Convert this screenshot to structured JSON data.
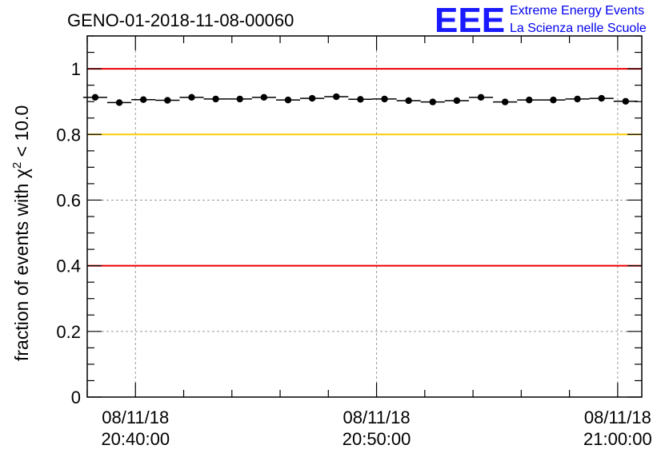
{
  "title": "GENO-01-2018-11-08-00060",
  "logo": {
    "mark": "EEE",
    "line1": "Extreme Energy Events",
    "line2": "La Scienza nelle Scuole",
    "color": "#1a1aff"
  },
  "chart_data": {
    "type": "scatter",
    "title": "GENO-01-2018-11-08-00060",
    "xlabel": "",
    "ylabel_main": "fraction of events with ",
    "ylabel_symbol": "χ",
    "ylabel_sup": "2",
    "ylabel_tail": " < 10.0",
    "ylim": [
      0,
      1.1
    ],
    "xlim_minutes": [
      -2.0,
      21.0
    ],
    "yticks": [
      0,
      0.2,
      0.4,
      0.6,
      0.8,
      1
    ],
    "ytick_labels": [
      "0",
      "0.2",
      "0.4",
      "0.6",
      "0.8",
      "1"
    ],
    "xticks": [
      {
        "minute": 0,
        "date": "08/11/18",
        "time": "20:40:00"
      },
      {
        "minute": 10,
        "date": "08/11/18",
        "time": "20:50:00"
      },
      {
        "minute": 20,
        "date": "08/11/18",
        "time": "21:00:00"
      }
    ],
    "reference_lines": [
      {
        "y": 1.0,
        "color": "#ee0000",
        "label": "upper red line"
      },
      {
        "y": 0.8,
        "color": "#ffcc00",
        "label": "yellow line"
      },
      {
        "y": 0.4,
        "color": "#ee0000",
        "label": "lower red line"
      }
    ],
    "bin_width_minutes": 1.0,
    "points": [
      {
        "x": -1.67,
        "y": 0.913
      },
      {
        "x": -0.67,
        "y": 0.897
      },
      {
        "x": 0.33,
        "y": 0.906
      },
      {
        "x": 1.33,
        "y": 0.904
      },
      {
        "x": 2.33,
        "y": 0.913
      },
      {
        "x": 3.33,
        "y": 0.908
      },
      {
        "x": 4.33,
        "y": 0.908
      },
      {
        "x": 5.33,
        "y": 0.913
      },
      {
        "x": 6.33,
        "y": 0.905
      },
      {
        "x": 7.33,
        "y": 0.91
      },
      {
        "x": 8.33,
        "y": 0.915
      },
      {
        "x": 9.33,
        "y": 0.907
      },
      {
        "x": 10.33,
        "y": 0.908
      },
      {
        "x": 11.33,
        "y": 0.903
      },
      {
        "x": 12.33,
        "y": 0.899
      },
      {
        "x": 13.33,
        "y": 0.903
      },
      {
        "x": 14.33,
        "y": 0.913
      },
      {
        "x": 15.33,
        "y": 0.899
      },
      {
        "x": 16.33,
        "y": 0.905
      },
      {
        "x": 17.33,
        "y": 0.905
      },
      {
        "x": 18.33,
        "y": 0.908
      },
      {
        "x": 19.33,
        "y": 0.91
      },
      {
        "x": 20.33,
        "y": 0.901
      }
    ],
    "grid": true,
    "marker_color": "#000000"
  }
}
